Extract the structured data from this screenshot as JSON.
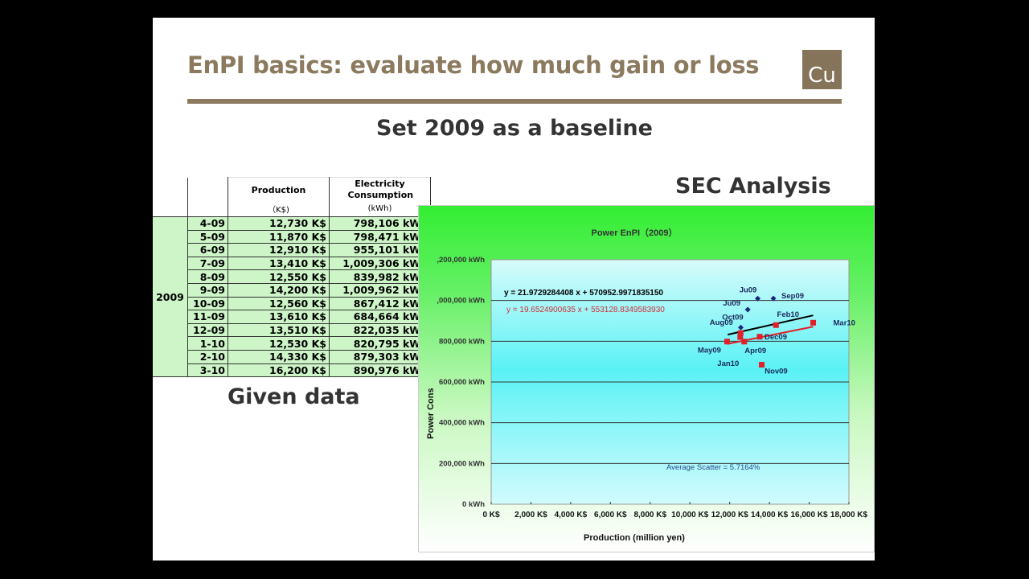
{
  "slide": {
    "title": "EnPI basics: evaluate how much gain or loss",
    "logo_text": "Cu",
    "subtitle": "Set 2009 as a baseline",
    "sec_heading": "SEC Analysis",
    "given_label": "Given data"
  },
  "table": {
    "headers": {
      "production": "Production",
      "production_unit": "（K$)",
      "consumption": "Electricity Consumption",
      "consumption_unit": "(kWh)"
    },
    "year": "2009",
    "rows": [
      {
        "month": "4-09",
        "production": "12,730 K$",
        "consumption": "798,106 kWh"
      },
      {
        "month": "5-09",
        "production": "11,870 K$",
        "consumption": "798,471 kWh"
      },
      {
        "month": "6-09",
        "production": "12,910 K$",
        "consumption": "955,101 kWh"
      },
      {
        "month": "7-09",
        "production": "13,410 K$",
        "consumption": "1,009,306 kWh"
      },
      {
        "month": "8-09",
        "production": "12,550 K$",
        "consumption": "839,982 kWh"
      },
      {
        "month": "9-09",
        "production": "14,200 K$",
        "consumption": "1,009,962 kWh"
      },
      {
        "month": "10-09",
        "production": "12,560 K$",
        "consumption": "867,412 kWh"
      },
      {
        "month": "11-09",
        "production": "13,610 K$",
        "consumption": "684,664 kWh"
      },
      {
        "month": "12-09",
        "production": "13,510 K$",
        "consumption": "822,035 kWh"
      },
      {
        "month": "1-10",
        "production": "12,530 K$",
        "consumption": "820,795 kWh"
      },
      {
        "month": "2-10",
        "production": "14,330 K$",
        "consumption": "879,303 kWh"
      },
      {
        "month": "3-10",
        "production": "16,200 K$",
        "consumption": "890,976 kWh"
      }
    ]
  },
  "chart_data": {
    "type": "scatter",
    "title": "Power EnPI（2009）",
    "xlabel": "Production (million  yen)",
    "ylabel": "Power Cons",
    "xlim": [
      0,
      18000
    ],
    "ylim": [
      0,
      1200000
    ],
    "grid": true,
    "x_ticks": [
      "0 K$",
      "2,000 K$",
      "4,000 K$",
      "6,000 K$",
      "8,000 K$",
      "10,000 K$",
      "12,000 K$",
      "14,000 K$",
      "16,000 K$",
      "18,000 K$"
    ],
    "y_ticks": [
      "0 kWh",
      "200,000 kWh",
      "400,000 kWh",
      "600,000 kWh",
      "800,000 kWh",
      ",000,000 kWh",
      ",200,000 kWh"
    ],
    "series": [
      {
        "color": "#1a2a7a",
        "marker": "diamond",
        "points": [
          {
            "x": 12910,
            "y": 955101,
            "label": "Ju09"
          },
          {
            "x": 13410,
            "y": 1009306,
            "label": "Ju09"
          },
          {
            "x": 14200,
            "y": 1009962,
            "label": "Sep09"
          },
          {
            "x": 12560,
            "y": 867412,
            "label": "Oct09"
          }
        ]
      },
      {
        "color": "#e0202a",
        "marker": "square",
        "points": [
          {
            "x": 12730,
            "y": 798106,
            "label": "Apr09"
          },
          {
            "x": 11870,
            "y": 798471,
            "label": "May09"
          },
          {
            "x": 12550,
            "y": 839982,
            "label": "Aug09"
          },
          {
            "x": 13610,
            "y": 684664,
            "label": "Nov09"
          },
          {
            "x": 13510,
            "y": 822035,
            "label": "Dec09"
          },
          {
            "x": 12530,
            "y": 820795,
            "label": "Jan10"
          },
          {
            "x": 14330,
            "y": 879303,
            "label": "Feb10"
          },
          {
            "x": 16200,
            "y": 890976,
            "label": "Mar10"
          }
        ]
      }
    ],
    "trendlines": [
      {
        "equation": "y = 21.9729284408 x + 570952.9971835150",
        "slope": 21.9729284408,
        "intercept": 570952.997183515,
        "color": "#000000",
        "x_range": [
          11900,
          16200
        ]
      },
      {
        "equation": "y = 19.6524900635  x + 553128.8349583930",
        "slope": 19.6524900635,
        "intercept": 553128.834958393,
        "color": "#e0202a",
        "x_range": [
          11870,
          16200
        ]
      }
    ],
    "annotation": "Average Scatter = 5.7164%"
  }
}
